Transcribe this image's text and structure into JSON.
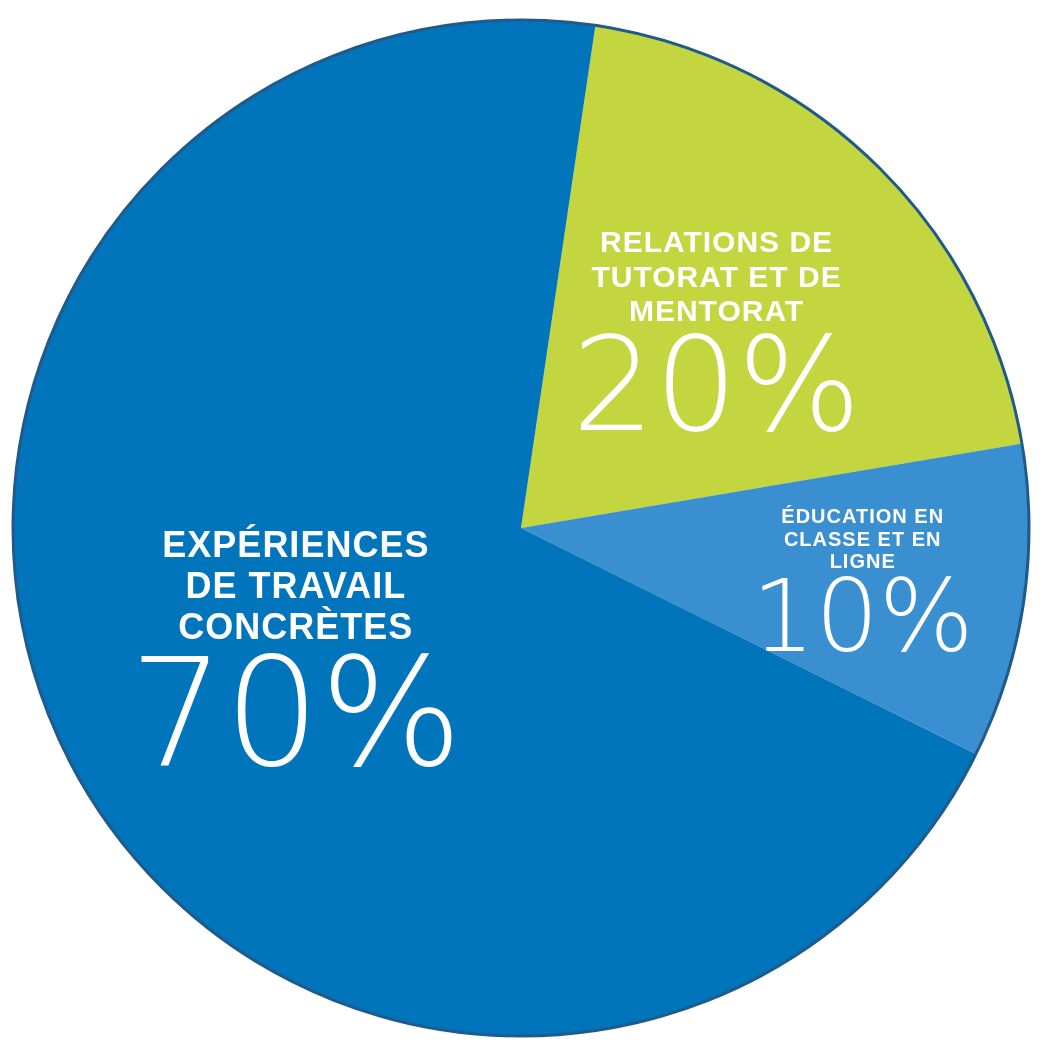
{
  "chart_data": {
    "type": "pie",
    "categories": [
      "RELATIONS DE TUTORAT ET DE MENTORAT",
      "ÉDUCATION EN CLASSE ET EN LIGNE",
      "EXPÉRIENCES DE TRAVAIL CONCRÈTES"
    ],
    "values": [
      20,
      10,
      70
    ],
    "colors": [
      "#c3d640",
      "#3a8fd0",
      "#0175bb"
    ],
    "value_labels": [
      "20%",
      "10%",
      "70%"
    ]
  }
}
